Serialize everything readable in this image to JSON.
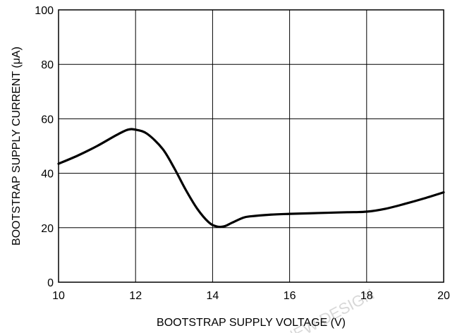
{
  "chart_data": {
    "type": "line",
    "title": "",
    "xlabel": "BOOTSTRAP SUPPLY VOLTAGE (V)",
    "ylabel": "BOOTSTRAP SUPPLY CURRENT (μA)",
    "xlim": [
      10,
      20
    ],
    "ylim": [
      0,
      100
    ],
    "xticks": [
      10,
      12,
      14,
      16,
      18,
      20
    ],
    "yticks": [
      0,
      20,
      40,
      60,
      80,
      100
    ],
    "grid": true,
    "legend": "none",
    "series": [
      {
        "x": [
          10,
          10.5,
          11,
          11.5,
          11.8,
          12,
          12.3,
          12.7,
          13,
          13.3,
          13.6,
          13.9,
          14.1,
          14.3,
          14.5,
          14.8,
          15,
          15.5,
          16,
          16.5,
          17,
          17.5,
          18,
          18.5,
          19,
          19.5,
          20
        ],
        "y": [
          43.5,
          46.5,
          50,
          54,
          56,
          56,
          54.5,
          49,
          42,
          34,
          27,
          22,
          20.5,
          20.5,
          21.8,
          23.7,
          24.2,
          24.8,
          25.1,
          25.3,
          25.5,
          25.7,
          25.9,
          27,
          28.8,
          30.8,
          33
        ]
      }
    ],
    "color": "#000000"
  },
  "watermark": {
    "text": "NEW DESIGN"
  }
}
